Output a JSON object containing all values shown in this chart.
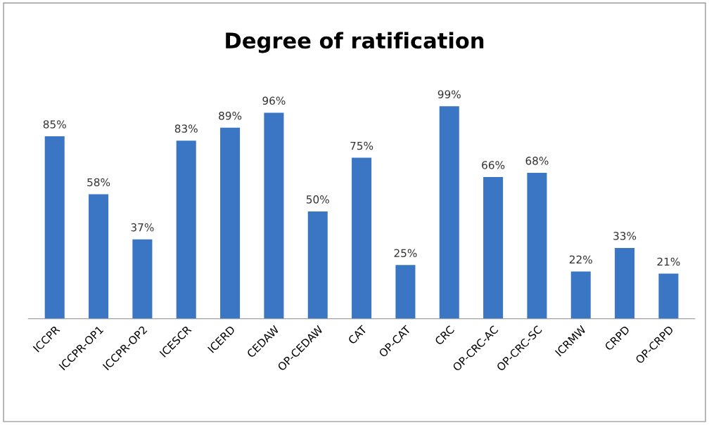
{
  "chart_data": {
    "type": "bar",
    "title": "Degree of ratification",
    "categories": [
      "ICCPR",
      "ICCPR-OP1",
      "ICCPR-OP2",
      "ICESCR",
      "ICERD",
      "CEDAW",
      "OP-CEDAW",
      "CAT",
      "OP-CAT",
      "CRC",
      "OP-CRC-AC",
      "OP-CRC-SC",
      "ICRMW",
      "CRPD",
      "OP-CRPD"
    ],
    "values": [
      85,
      58,
      37,
      83,
      89,
      96,
      50,
      75,
      25,
      99,
      66,
      68,
      22,
      33,
      21
    ],
    "value_labels": [
      "85%",
      "58%",
      "37%",
      "83%",
      "89%",
      "96%",
      "50%",
      "75%",
      "25%",
      "99%",
      "66%",
      "68%",
      "22%",
      "33%",
      "21%"
    ],
    "color": "#3a76c4",
    "grid": false,
    "legend": false
  }
}
